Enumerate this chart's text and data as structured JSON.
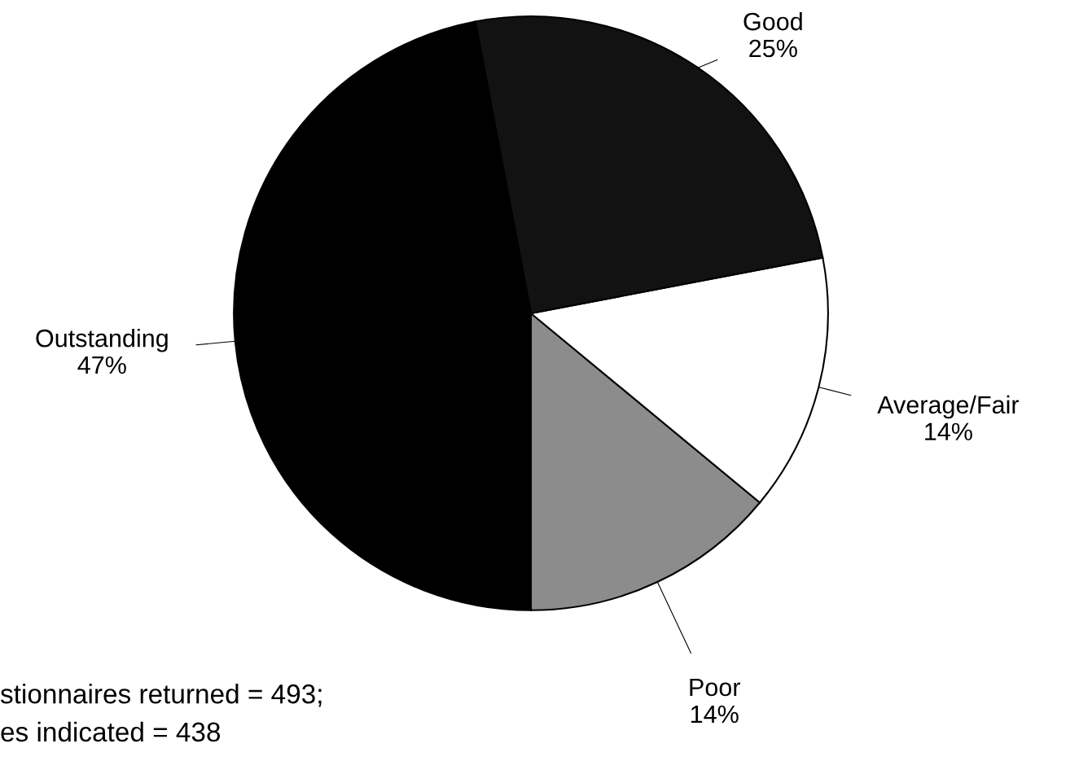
{
  "chart_data": {
    "type": "pie",
    "categories": [
      "Poor",
      "Average/Fair",
      "Good",
      "Outstanding"
    ],
    "values": [
      14,
      14,
      25,
      47
    ],
    "value_labels": [
      "14%",
      "14%",
      "25%",
      "47%"
    ],
    "colors": [
      "#8c8c8c",
      "#ffffff",
      "#121212",
      "#000000"
    ],
    "annotations": [
      "stionnaires returned = 493;",
      "es indicated = 438"
    ]
  }
}
